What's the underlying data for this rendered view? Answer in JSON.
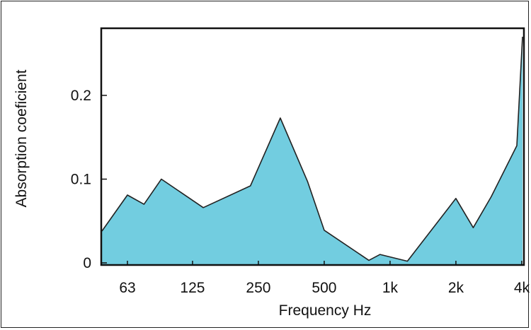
{
  "chart_data": {
    "type": "area",
    "title": "",
    "xlabel": "Frequency Hz",
    "ylabel": "Absorption coeficient",
    "x_ticks": [
      "63",
      "125",
      "250",
      "500",
      "1k",
      "2k",
      "4k"
    ],
    "y_ticks": [
      "0",
      "0.1",
      "0.2"
    ],
    "ylim": [
      0,
      0.28
    ],
    "grid": false,
    "fill_color": "#72cde0",
    "line_color": "#222222",
    "series": [
      {
        "x": [
          "45",
          "63",
          "75",
          "90",
          "140",
          "230",
          "315",
          "420",
          "500",
          "800",
          "900",
          "1.2k",
          "2k",
          "2.4k",
          "2.9k",
          "3.8k",
          "5k"
        ],
        "values": [
          0.038,
          0.081,
          0.07,
          0.1,
          0.066,
          0.092,
          0.173,
          0.097,
          0.039,
          0.003,
          0.01,
          0.002,
          0.077,
          0.042,
          0.079,
          0.14,
          0.27
        ]
      }
    ]
  }
}
